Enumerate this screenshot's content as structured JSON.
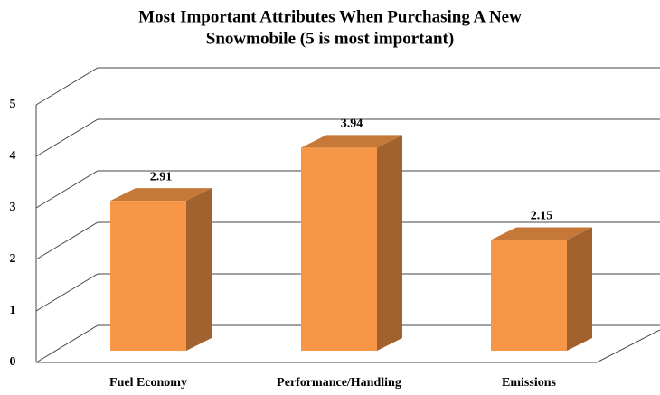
{
  "chart_data": {
    "type": "bar3d",
    "title": [
      "Most Important Attributes When  Purchasing A New",
      "Snowmobile (5 is most important)"
    ],
    "categories": [
      "Fuel Economy",
      "Performance/Handling",
      "Emissions"
    ],
    "values": [
      2.91,
      3.94,
      2.15
    ],
    "color": "#f79646",
    "ylim": [
      0,
      5
    ],
    "yticks": [
      0,
      1,
      2,
      3,
      4,
      5
    ],
    "grid": true
  }
}
